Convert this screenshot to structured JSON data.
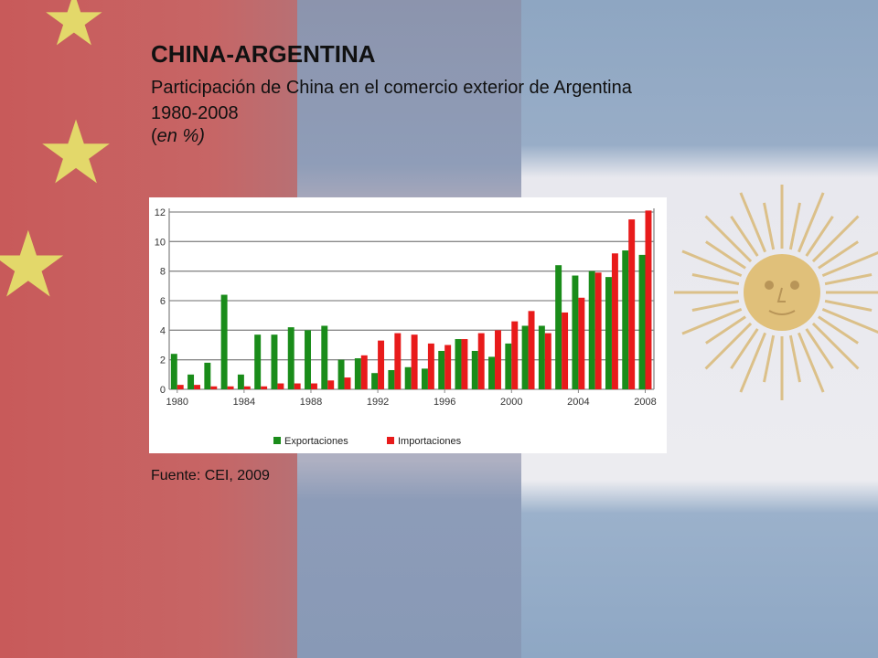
{
  "slide": {
    "title": "CHINA-ARGENTINA",
    "subtitle_line1": "Participación de China en el comercio exterior de Argentina",
    "subtitle_line2": "1980-2008",
    "unit_open": "(",
    "unit_italic": "en %)",
    "source": "Fuente: CEI, 2009"
  },
  "colors": {
    "exportaciones": "#1a8c1a",
    "importaciones": "#e81b1b"
  },
  "background_icons": [
    "star-icon",
    "sun-of-may-icon"
  ],
  "chart_data": {
    "type": "bar",
    "x": [
      1980,
      1981,
      1982,
      1983,
      1984,
      1985,
      1986,
      1987,
      1988,
      1989,
      1990,
      1991,
      1992,
      1993,
      1994,
      1995,
      1996,
      1997,
      1998,
      1999,
      2000,
      2001,
      2002,
      2003,
      2004,
      2005,
      2006,
      2007,
      2008
    ],
    "x_tick_labels": [
      "1980",
      "1984",
      "1988",
      "1992",
      "1996",
      "2000",
      "2004",
      "2008"
    ],
    "y_tick_labels": [
      "0",
      "2",
      "4",
      "6",
      "8",
      "10",
      "12"
    ],
    "ylim": [
      0,
      12
    ],
    "grid": true,
    "legend_position": "bottom",
    "series": [
      {
        "name": "Exportaciones",
        "values": [
          2.4,
          1.0,
          1.8,
          6.4,
          1.0,
          3.7,
          3.7,
          4.2,
          4.0,
          4.3,
          2.0,
          2.1,
          1.1,
          1.3,
          1.5,
          1.4,
          2.6,
          3.4,
          2.6,
          2.2,
          3.1,
          4.3,
          4.3,
          8.4,
          7.7,
          8.0,
          7.6,
          9.4,
          9.1
        ]
      },
      {
        "name": "Importaciones",
        "values": [
          0.3,
          0.3,
          0.2,
          0.2,
          0.2,
          0.2,
          0.4,
          0.4,
          0.4,
          0.6,
          0.8,
          2.3,
          3.3,
          3.8,
          3.7,
          3.1,
          3.0,
          3.4,
          3.8,
          4.0,
          4.6,
          5.3,
          3.8,
          5.2,
          6.2,
          7.9,
          9.2,
          11.5,
          12.1
        ]
      }
    ]
  }
}
